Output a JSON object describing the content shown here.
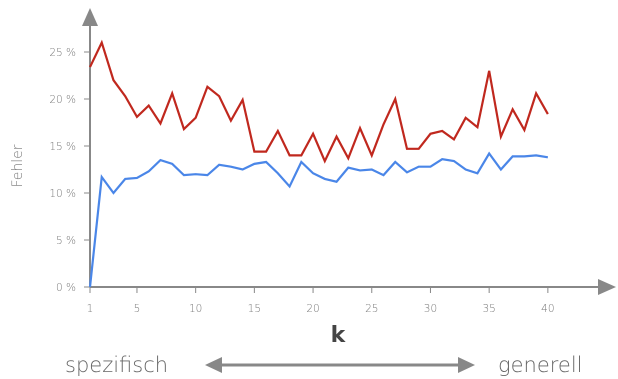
{
  "chart_data": {
    "type": "line",
    "xlabel": "k",
    "ylabel": "Fehler",
    "ylim": [
      0,
      30
    ],
    "xlim": [
      1,
      43
    ],
    "grid": false,
    "yticks": [
      0,
      5,
      10,
      15,
      20,
      25
    ],
    "ytick_labels": [
      "0 %",
      "5 %",
      "10 %",
      "15 %",
      "20 %",
      "25 %"
    ],
    "xticks": [
      1,
      5,
      10,
      15,
      20,
      25,
      30,
      35,
      40
    ],
    "xtick_labels": [
      "1",
      "5",
      "10",
      "15",
      "20",
      "25",
      "30",
      "35",
      "40"
    ],
    "x": [
      1,
      2,
      3,
      4,
      5,
      6,
      7,
      8,
      9,
      10,
      11,
      12,
      13,
      14,
      15,
      16,
      17,
      18,
      19,
      20,
      21,
      22,
      23,
      24,
      25,
      26,
      27,
      28,
      29,
      30,
      31,
      32,
      33,
      34,
      35,
      36,
      37,
      38,
      39,
      40
    ],
    "series": [
      {
        "color": "#c0281e",
        "values": [
          23.4,
          26.0,
          22.0,
          20.3,
          18.1,
          19.3,
          17.4,
          20.6,
          16.8,
          18.0,
          21.3,
          20.3,
          17.7,
          19.9,
          14.4,
          14.4,
          16.6,
          14.0,
          14.0,
          16.3,
          13.4,
          16.0,
          13.7,
          16.9,
          14.0,
          17.3,
          20.0,
          14.7,
          14.7,
          16.3,
          16.6,
          15.7,
          18.0,
          17.0,
          23.0,
          16.0,
          18.9,
          16.7,
          20.6,
          18.4
        ]
      },
      {
        "color": "#4a86e8",
        "values": [
          0,
          11.7,
          10.0,
          11.5,
          11.6,
          12.3,
          13.5,
          13.1,
          11.9,
          12.0,
          11.9,
          13.0,
          12.8,
          12.5,
          13.1,
          13.3,
          12.1,
          10.7,
          13.3,
          12.1,
          11.5,
          11.2,
          12.7,
          12.4,
          12.5,
          11.9,
          13.3,
          12.2,
          12.8,
          12.8,
          13.6,
          13.4,
          12.5,
          12.1,
          14.2,
          12.5,
          13.9,
          13.9,
          14.0,
          13.8
        ]
      }
    ]
  },
  "footer": {
    "left_label": "spezifisch",
    "right_label": "generell"
  }
}
